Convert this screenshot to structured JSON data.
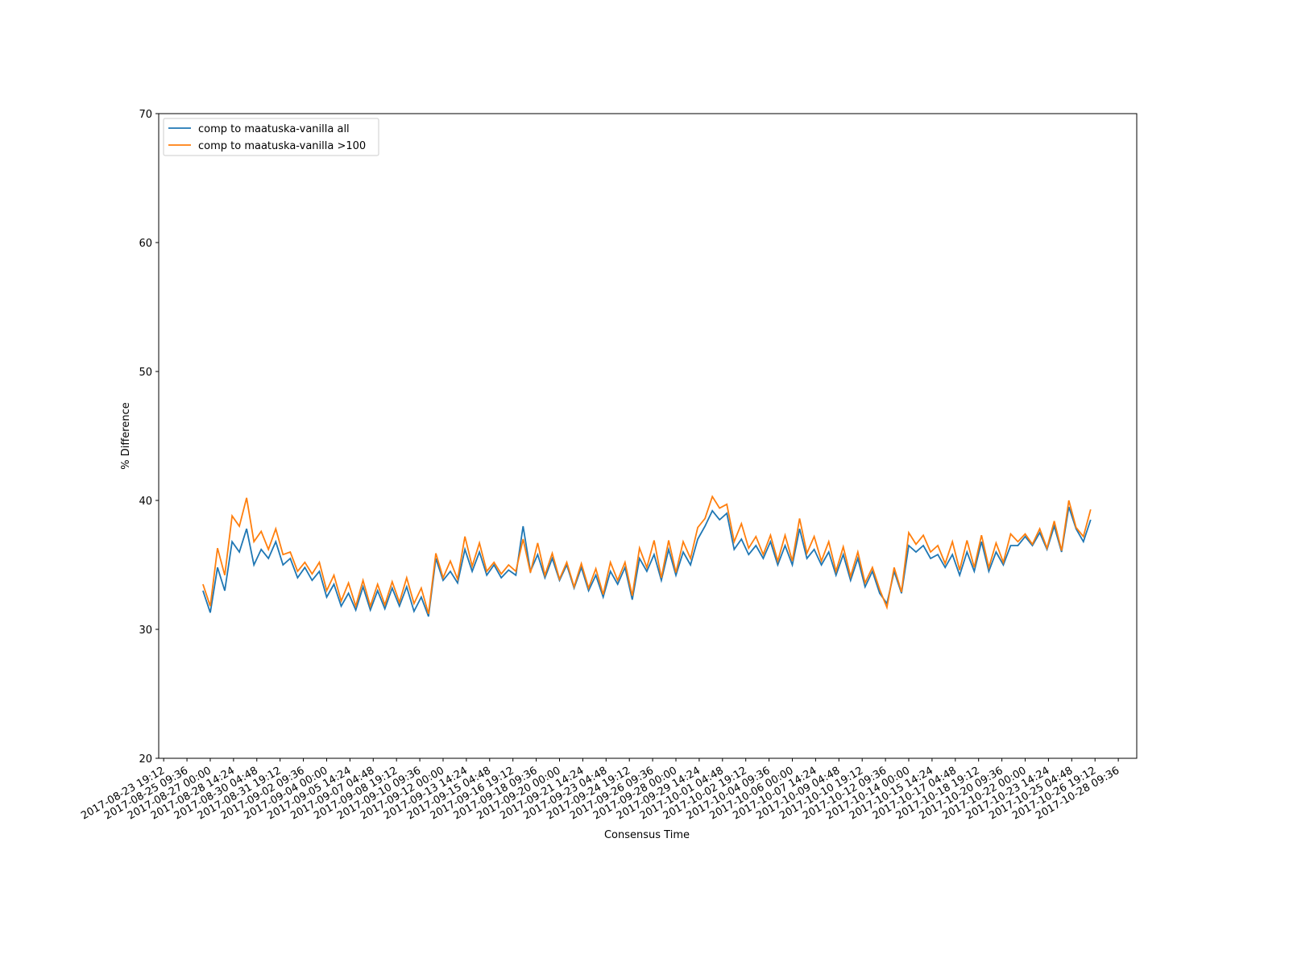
{
  "chart_data": {
    "type": "line",
    "xlabel": "Consensus Time",
    "ylabel": "% Difference",
    "xlim": [
      "2017-08-23 11:00",
      "2017-10-29 16:00"
    ],
    "xticks": [
      "2017-08-23 19:12",
      "2017-08-25 09:36",
      "2017-08-27 00:00",
      "2017-08-28 14:24",
      "2017-08-30 04:48",
      "2017-08-31 19:12",
      "2017-09-02 09:36",
      "2017-09-04 00:00",
      "2017-09-05 14:24",
      "2017-09-07 04:48",
      "2017-09-08 19:12",
      "2017-09-10 09:36",
      "2017-09-12 00:00",
      "2017-09-13 14:24",
      "2017-09-15 04:48",
      "2017-09-16 19:12",
      "2017-09-18 09:36",
      "2017-09-20 00:00",
      "2017-09-21 14:24",
      "2017-09-23 04:48",
      "2017-09-24 19:12",
      "2017-09-26 09:36",
      "2017-09-28 00:00",
      "2017-09-29 14:24",
      "2017-10-01 04:48",
      "2017-10-02 19:12",
      "2017-10-04 09:36",
      "2017-10-06 00:00",
      "2017-10-07 14:24",
      "2017-10-09 04:48",
      "2017-10-10 19:12",
      "2017-10-12 09:36",
      "2017-10-14 00:00",
      "2017-10-15 14:24",
      "2017-10-17 04:48",
      "2017-10-18 19:12",
      "2017-10-20 09:36",
      "2017-10-22 00:00",
      "2017-10-23 14:24",
      "2017-10-25 04:48",
      "2017-10-26 19:12",
      "2017-10-28 09:36"
    ],
    "ylim": [
      20,
      70
    ],
    "yticks": [
      20,
      30,
      40,
      50,
      60,
      70
    ],
    "legend": "upper left",
    "x": [
      "2017-08-26 12:00",
      "2017-08-27 00:00",
      "2017-08-27 12:00",
      "2017-08-28 00:00",
      "2017-08-28 12:00",
      "2017-08-29 00:00",
      "2017-08-29 12:00",
      "2017-08-30 00:00",
      "2017-08-30 12:00",
      "2017-08-31 00:00",
      "2017-08-31 12:00",
      "2017-09-01 00:00",
      "2017-09-01 12:00",
      "2017-09-02 00:00",
      "2017-09-02 12:00",
      "2017-09-03 00:00",
      "2017-09-03 12:00",
      "2017-09-04 00:00",
      "2017-09-04 12:00",
      "2017-09-05 00:00",
      "2017-09-05 12:00",
      "2017-09-06 00:00",
      "2017-09-06 12:00",
      "2017-09-07 00:00",
      "2017-09-07 12:00",
      "2017-09-08 00:00",
      "2017-09-08 12:00",
      "2017-09-09 00:00",
      "2017-09-09 12:00",
      "2017-09-10 00:00",
      "2017-09-10 12:00",
      "2017-09-11 00:00",
      "2017-09-11 12:00",
      "2017-09-12 00:00",
      "2017-09-12 12:00",
      "2017-09-13 00:00",
      "2017-09-13 12:00",
      "2017-09-14 00:00",
      "2017-09-14 12:00",
      "2017-09-15 00:00",
      "2017-09-15 12:00",
      "2017-09-16 00:00",
      "2017-09-16 12:00",
      "2017-09-17 00:00",
      "2017-09-17 12:00",
      "2017-09-18 00:00",
      "2017-09-18 12:00",
      "2017-09-19 00:00",
      "2017-09-19 12:00",
      "2017-09-20 00:00",
      "2017-09-20 12:00",
      "2017-09-21 00:00",
      "2017-09-21 12:00",
      "2017-09-22 00:00",
      "2017-09-22 12:00",
      "2017-09-23 00:00",
      "2017-09-23 12:00",
      "2017-09-24 00:00",
      "2017-09-24 12:00",
      "2017-09-25 00:00",
      "2017-09-25 12:00",
      "2017-09-26 00:00",
      "2017-09-26 12:00",
      "2017-09-27 00:00",
      "2017-09-27 12:00",
      "2017-09-28 00:00",
      "2017-09-28 12:00",
      "2017-09-29 00:00",
      "2017-09-29 12:00",
      "2017-09-30 00:00",
      "2017-09-30 12:00",
      "2017-10-01 00:00",
      "2017-10-01 12:00",
      "2017-10-02 00:00",
      "2017-10-02 12:00",
      "2017-10-03 00:00",
      "2017-10-03 12:00",
      "2017-10-04 00:00",
      "2017-10-04 12:00",
      "2017-10-05 00:00",
      "2017-10-05 12:00",
      "2017-10-06 00:00",
      "2017-10-06 12:00",
      "2017-10-07 00:00",
      "2017-10-07 12:00",
      "2017-10-08 00:00",
      "2017-10-08 12:00",
      "2017-10-09 00:00",
      "2017-10-09 12:00",
      "2017-10-10 00:00",
      "2017-10-10 12:00",
      "2017-10-11 00:00",
      "2017-10-11 12:00",
      "2017-10-12 00:00",
      "2017-10-12 12:00",
      "2017-10-13 00:00",
      "2017-10-13 12:00",
      "2017-10-14 00:00",
      "2017-10-14 12:00",
      "2017-10-15 00:00",
      "2017-10-15 12:00",
      "2017-10-16 00:00",
      "2017-10-16 12:00",
      "2017-10-17 00:00",
      "2017-10-17 12:00",
      "2017-10-18 00:00",
      "2017-10-18 12:00",
      "2017-10-19 00:00",
      "2017-10-19 12:00",
      "2017-10-20 00:00",
      "2017-10-20 12:00",
      "2017-10-21 00:00",
      "2017-10-21 12:00",
      "2017-10-22 00:00",
      "2017-10-22 12:00",
      "2017-10-23 00:00",
      "2017-10-23 12:00",
      "2017-10-24 00:00",
      "2017-10-24 12:00",
      "2017-10-25 00:00",
      "2017-10-25 12:00",
      "2017-10-26 00:00",
      "2017-10-26 12:00"
    ],
    "series": [
      {
        "name": "comp to maatuska-vanilla all",
        "color": "#1f77b4",
        "values": [
          33.0,
          31.3,
          34.8,
          33.0,
          36.8,
          36.0,
          37.8,
          35.0,
          36.2,
          35.5,
          36.8,
          35.0,
          35.5,
          34.0,
          34.8,
          33.8,
          34.5,
          32.5,
          33.5,
          31.8,
          32.8,
          31.5,
          33.3,
          31.5,
          33.0,
          31.6,
          33.2,
          31.8,
          33.3,
          31.4,
          32.5,
          31.0,
          35.5,
          33.8,
          34.5,
          33.6,
          36.2,
          34.5,
          36.0,
          34.2,
          35.0,
          34.0,
          34.6,
          34.2,
          38.0,
          34.5,
          35.8,
          34.0,
          35.5,
          33.8,
          35.0,
          33.2,
          34.8,
          33.0,
          34.2,
          32.5,
          34.5,
          33.5,
          34.8,
          32.3,
          35.5,
          34.5,
          35.8,
          33.8,
          36.2,
          34.2,
          36.0,
          35.0,
          37.0,
          38.0,
          39.2,
          38.5,
          39.0,
          36.2,
          37.0,
          35.8,
          36.5,
          35.5,
          36.8,
          35.0,
          36.5,
          35.0,
          37.8,
          35.5,
          36.2,
          35.0,
          36.0,
          34.2,
          35.8,
          33.8,
          35.5,
          33.3,
          34.5,
          32.8,
          32.0,
          34.5,
          32.8,
          36.5,
          36.0,
          36.5,
          35.5,
          35.8,
          34.8,
          35.8,
          34.2,
          36.0,
          34.5,
          36.8,
          34.5,
          36.0,
          35.0,
          36.5,
          36.5,
          37.2,
          36.5,
          37.5,
          36.2,
          38.0,
          36.0,
          39.5,
          37.8,
          36.8,
          38.5
        ]
      },
      {
        "name": "comp to maatuska-vanilla >100",
        "color": "#ff7f0e",
        "values": [
          33.5,
          31.8,
          36.3,
          34.2,
          38.8,
          38.0,
          40.2,
          36.8,
          37.6,
          36.2,
          37.8,
          35.8,
          36.0,
          34.5,
          35.2,
          34.3,
          35.2,
          33.0,
          34.2,
          32.2,
          33.6,
          31.8,
          33.8,
          31.8,
          33.5,
          31.9,
          33.7,
          32.1,
          34.0,
          32.0,
          33.2,
          31.2,
          35.9,
          34.0,
          35.3,
          33.9,
          37.2,
          34.9,
          36.7,
          34.5,
          35.2,
          34.3,
          35.0,
          34.5,
          37.0,
          34.4,
          36.7,
          34.2,
          35.9,
          33.9,
          35.2,
          33.3,
          35.1,
          33.2,
          34.7,
          32.7,
          35.2,
          33.8,
          35.2,
          32.6,
          36.3,
          34.8,
          36.9,
          34.0,
          36.9,
          34.4,
          36.8,
          35.5,
          37.9,
          38.6,
          40.3,
          39.4,
          39.7,
          36.8,
          38.2,
          36.3,
          37.2,
          35.8,
          37.3,
          35.3,
          37.3,
          35.3,
          38.6,
          35.9,
          37.2,
          35.3,
          36.8,
          34.5,
          36.4,
          34.1,
          36.0,
          33.6,
          34.8,
          33.1,
          31.7,
          34.8,
          32.9,
          37.5,
          36.6,
          37.3,
          36.0,
          36.5,
          35.1,
          36.8,
          34.6,
          36.9,
          34.8,
          37.3,
          34.8,
          36.7,
          35.2,
          37.4,
          36.8,
          37.4,
          36.6,
          37.8,
          36.3,
          38.4,
          36.1,
          40.0,
          37.9,
          37.2,
          39.3
        ]
      }
    ]
  }
}
